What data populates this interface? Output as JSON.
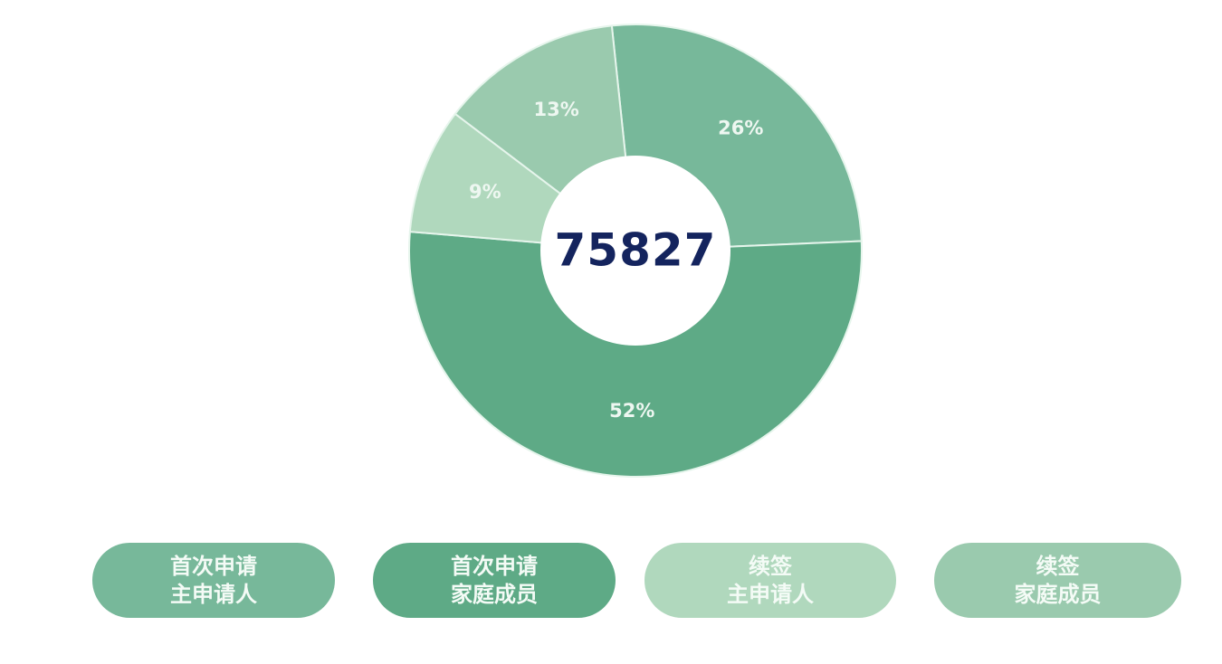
{
  "chart_data": {
    "type": "pie",
    "donut": true,
    "center_label": "75827",
    "start_angle_deg": -6,
    "slices": [
      {
        "label": "首次申请 主申请人",
        "value": 26,
        "display": "26%",
        "color": "#77b89a"
      },
      {
        "label": "首次申请 家庭成员",
        "value": 52,
        "display": "52%",
        "color": "#5eaa86"
      },
      {
        "label": "续签 主申请人",
        "value": 9,
        "display": "9%",
        "color": "#b0d8bd"
      },
      {
        "label": "续签 家庭成员",
        "value": 13,
        "display": "13%",
        "color": "#9acaae"
      }
    ],
    "legend": [
      {
        "line1": "首次申请",
        "line2": "主申请人",
        "color": "#77b89a"
      },
      {
        "line1": "首次申请",
        "line2": "家庭成员",
        "color": "#5eaa86"
      },
      {
        "line1": "续签",
        "line2": "主申请人",
        "color": "#b0d8bd"
      },
      {
        "line1": "续签",
        "line2": "家庭成员",
        "color": "#9acaae"
      }
    ],
    "legend_placement": "bottom"
  }
}
